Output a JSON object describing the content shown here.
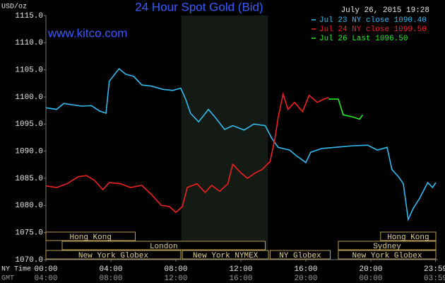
{
  "chart_data": {
    "type": "line",
    "title": "24 Hour Spot Gold (Bid)",
    "site": "www.kitco.com",
    "y_label": "USD/oz",
    "timestamp": "July 26, 2015 19:28",
    "x_row_labels": [
      "NY Time",
      "GMT"
    ],
    "xlim": [
      0,
      24
    ],
    "ylim": [
      1070,
      1115
    ],
    "grid": false,
    "shaded_range": [
      8.33,
      13.67
    ],
    "shade_color": "#141a14",
    "yticks": [
      {
        "value": 1070,
        "label": "1070.0"
      },
      {
        "value": 1075,
        "label": "1075.0"
      },
      {
        "value": 1080,
        "label": "1080.0"
      },
      {
        "value": 1085,
        "label": "1085.0"
      },
      {
        "value": 1090,
        "label": "1090.0"
      },
      {
        "value": 1095,
        "label": "1095.0"
      },
      {
        "value": 1100,
        "label": "1100.0"
      },
      {
        "value": 1105,
        "label": "1105.0"
      },
      {
        "value": 1110,
        "label": "1110.0"
      },
      {
        "value": 1115,
        "label": "1115.0"
      }
    ],
    "xticks": [
      {
        "value": 0,
        "label": "00:00"
      },
      {
        "value": 4,
        "label": "04:00"
      },
      {
        "value": 8,
        "label": "08:00"
      },
      {
        "value": 12,
        "label": "12:00"
      },
      {
        "value": 16,
        "label": "16:00"
      },
      {
        "value": 20,
        "label": "20:00"
      },
      {
        "value": 23.98,
        "label": "23:59"
      }
    ],
    "gmt_ticks": [
      {
        "value": 0,
        "label": "04:00"
      },
      {
        "value": 4,
        "label": "08:00"
      },
      {
        "value": 8,
        "label": "12:00"
      },
      {
        "value": 12,
        "label": "16:00"
      },
      {
        "value": 16,
        "label": "20:00"
      },
      {
        "value": 20,
        "label": "00:00"
      },
      {
        "value": 23.98,
        "label": "03:59"
      }
    ],
    "sessions": [
      [
        {
          "label": "Hong Kong",
          "start": 0,
          "end": 5.5
        },
        {
          "label": "Hong Kong",
          "start": 20.6,
          "end": 24
        }
      ],
      [
        {
          "label": "London",
          "start": 1.0,
          "end": 13.5
        },
        {
          "label": "Sydney",
          "start": 18.0,
          "end": 24
        }
      ],
      [
        {
          "label": "New York Globex",
          "start": 0,
          "end": 8.3
        },
        {
          "label": "New York NYMEX",
          "start": 8.4,
          "end": 13.7
        },
        {
          "label": "NY Globex",
          "start": 13.8,
          "end": 17.5
        },
        {
          "label": "New York Globex",
          "start": 18.0,
          "end": 24
        }
      ]
    ],
    "series": [
      {
        "name": "Jul 23 NY close 1090.40",
        "color": "#33bbee",
        "x": [
          0,
          0.65,
          1.1,
          1.5,
          2.2,
          2.8,
          3.3,
          3.7,
          3.9,
          4.5,
          4.9,
          5.4,
          5.9,
          6.5,
          7.2,
          7.8,
          8.3,
          8.6,
          8.9,
          9.4,
          10.0,
          10.4,
          11.0,
          11.5,
          12.2,
          12.8,
          13.5,
          13.9,
          14.3,
          15.0,
          15.4,
          16.0,
          16.3,
          17.0,
          17.8,
          18.9,
          19.8,
          20.4,
          21.0,
          21.3,
          21.7,
          22.0,
          22.3,
          22.6,
          23.0,
          23.5,
          23.8,
          24.0
        ],
        "values": [
          1098.0,
          1097.7,
          1098.8,
          1098.6,
          1098.3,
          1098.4,
          1097.4,
          1097.0,
          1102.9,
          1105.2,
          1104.2,
          1103.8,
          1102.2,
          1102.0,
          1101.4,
          1101.2,
          1101.6,
          1099.6,
          1097.0,
          1095.4,
          1097.7,
          1096.3,
          1094.0,
          1094.7,
          1093.9,
          1095.0,
          1094.7,
          1092.4,
          1090.7,
          1090.2,
          1089.2,
          1087.9,
          1089.8,
          1090.5,
          1090.7,
          1091.0,
          1091.1,
          1090.2,
          1090.7,
          1086.6,
          1085.3,
          1084.0,
          1077.4,
          1079.4,
          1081.3,
          1084.2,
          1083.3,
          1084.2
        ]
      },
      {
        "name": "Jul 24 NY close 1099.50",
        "color": "#ee2222",
        "x": [
          0,
          0.65,
          1.3,
          2.0,
          2.5,
          3.0,
          3.5,
          3.9,
          4.6,
          5.2,
          5.9,
          6.5,
          7.1,
          7.6,
          8.0,
          8.4,
          8.7,
          9.3,
          9.8,
          10.2,
          10.7,
          11.2,
          11.5,
          12.0,
          12.4,
          12.9,
          13.3,
          13.8,
          14.1,
          14.3,
          14.6,
          14.9,
          15.3,
          15.8,
          16.2,
          16.7,
          17.1,
          17.4
        ],
        "values": [
          1083.6,
          1083.3,
          1084.0,
          1085.3,
          1085.5,
          1084.6,
          1082.9,
          1084.2,
          1084.0,
          1083.3,
          1083.7,
          1082.0,
          1080.0,
          1079.8,
          1078.7,
          1079.8,
          1083.3,
          1084.0,
          1082.4,
          1083.7,
          1082.6,
          1084.0,
          1087.6,
          1086.0,
          1085.0,
          1086.0,
          1086.6,
          1088.1,
          1092.4,
          1096.3,
          1100.5,
          1097.7,
          1099.0,
          1097.3,
          1100.3,
          1099.0,
          1099.6,
          1099.9
        ]
      },
      {
        "name": "Jul 26 Last 1096.50",
        "color": "#22ee22",
        "x": [
          17.4,
          18.0,
          18.3,
          18.9,
          19.3,
          19.5
        ],
        "values": [
          1099.6,
          1099.6,
          1096.7,
          1096.3,
          1095.9,
          1096.7
        ]
      }
    ]
  }
}
